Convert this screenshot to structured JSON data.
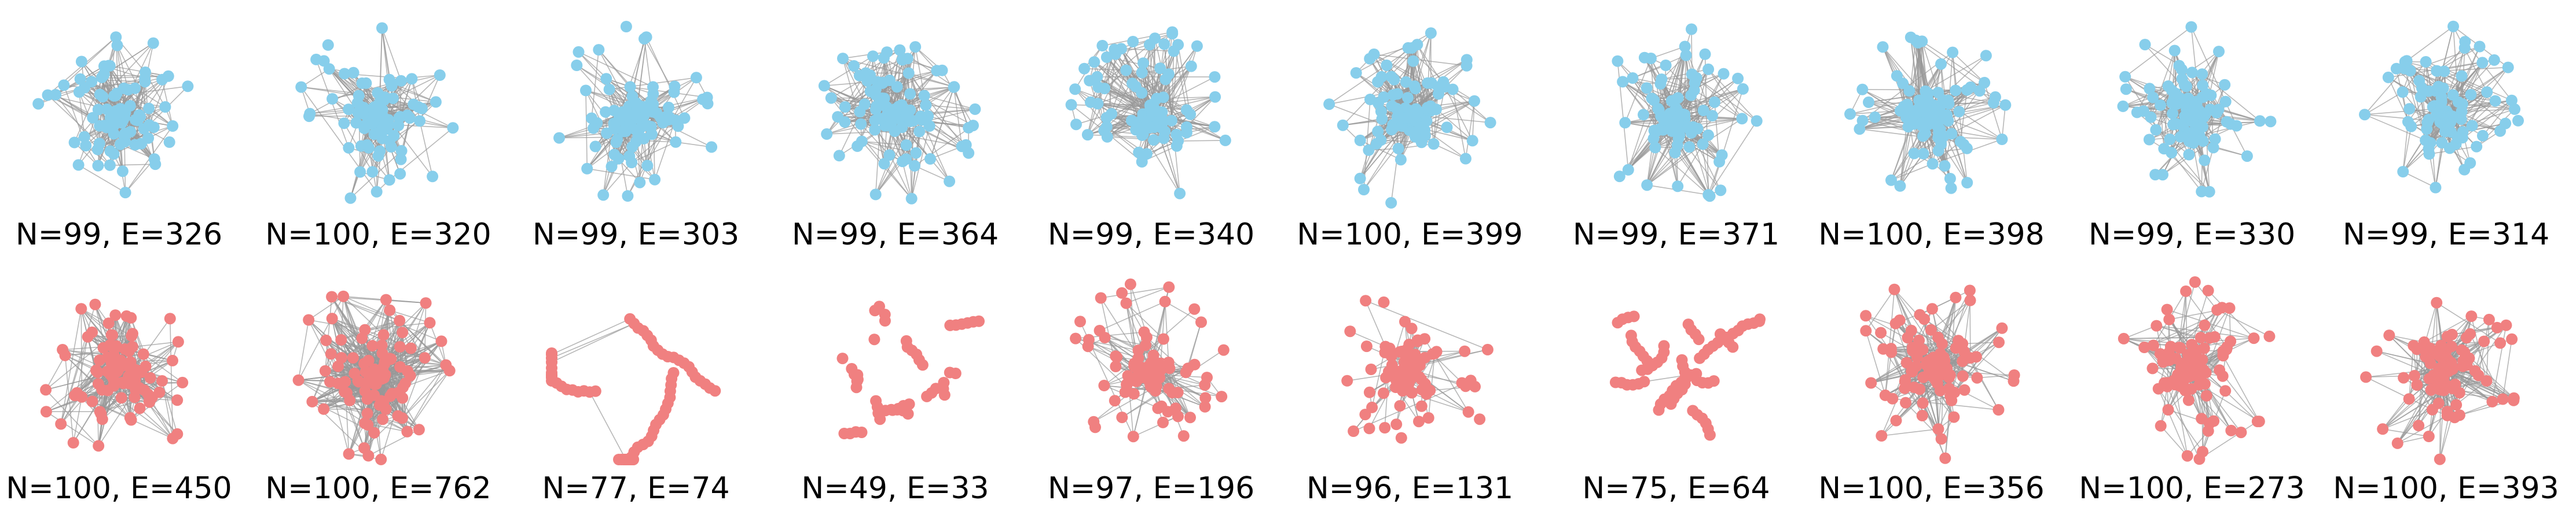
{
  "colors": {
    "top_nodes": "#87ceeb",
    "bottom_nodes": "#f08080",
    "edges": "#999999"
  },
  "rows": [
    {
      "name": "top-row",
      "graphs": [
        {
          "label": "N=99, E=326",
          "nodes": 99,
          "edges": 326
        },
        {
          "label": "N=100, E=320",
          "nodes": 100,
          "edges": 320
        },
        {
          "label": "N=99, E=303",
          "nodes": 99,
          "edges": 303
        },
        {
          "label": "N=99, E=364",
          "nodes": 99,
          "edges": 364
        },
        {
          "label": "N=99, E=340",
          "nodes": 99,
          "edges": 340
        },
        {
          "label": "N=100, E=399",
          "nodes": 100,
          "edges": 399
        },
        {
          "label": "N=99, E=371",
          "nodes": 99,
          "edges": 371
        },
        {
          "label": "N=100, E=398",
          "nodes": 100,
          "edges": 398
        },
        {
          "label": "N=99, E=330",
          "nodes": 99,
          "edges": 330
        },
        {
          "label": "N=99, E=314",
          "nodes": 99,
          "edges": 314
        }
      ]
    },
    {
      "name": "bottom-row",
      "graphs": [
        {
          "label": "N=100, E=450",
          "nodes": 100,
          "edges": 450
        },
        {
          "label": "N=100, E=762",
          "nodes": 100,
          "edges": 762
        },
        {
          "label": "N=77, E=74",
          "nodes": 77,
          "edges": 74
        },
        {
          "label": "N=49, E=33",
          "nodes": 49,
          "edges": 33
        },
        {
          "label": "N=97, E=196",
          "nodes": 97,
          "edges": 196
        },
        {
          "label": "N=96, E=131",
          "nodes": 96,
          "edges": 131
        },
        {
          "label": "N=75, E=64",
          "nodes": 75,
          "edges": 64
        },
        {
          "label": "N=100, E=356",
          "nodes": 100,
          "edges": 356
        },
        {
          "label": "N=100, E=273",
          "nodes": 100,
          "edges": 273
        },
        {
          "label": "N=100, E=393",
          "nodes": 100,
          "edges": 393
        }
      ]
    }
  ]
}
